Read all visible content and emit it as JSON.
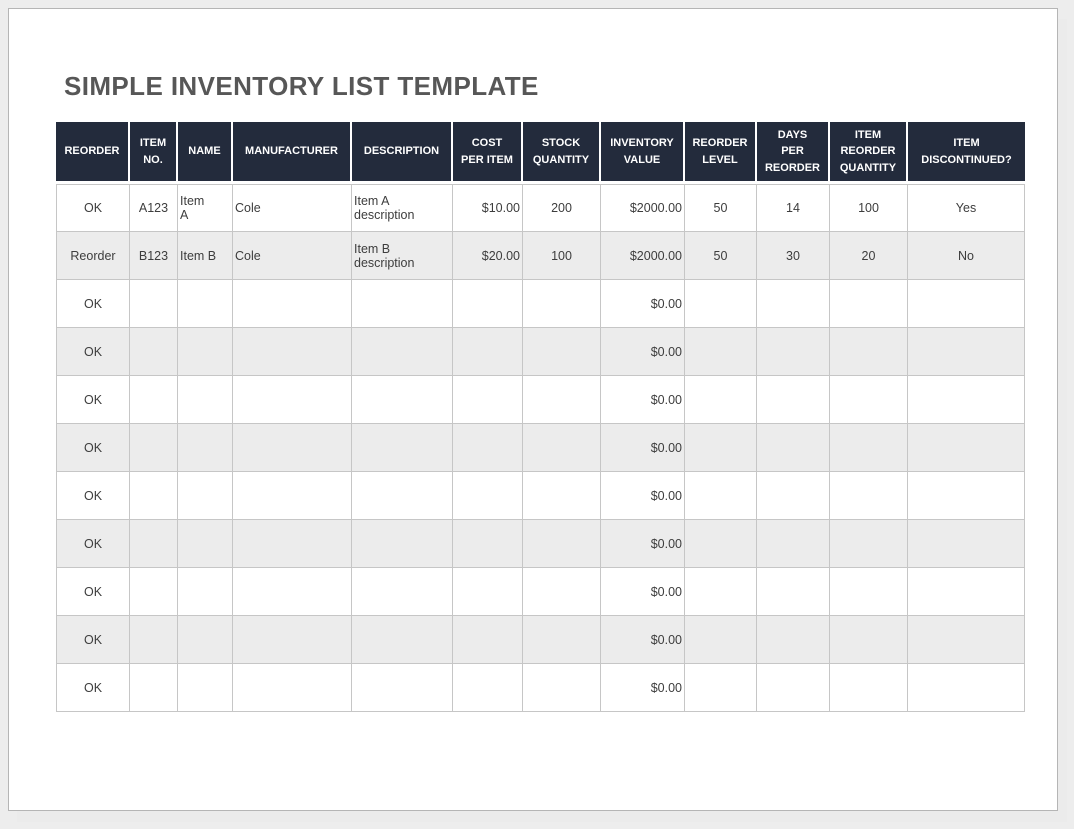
{
  "title": "SIMPLE INVENTORY LIST TEMPLATE",
  "colors": {
    "header_bg": "#232B3C",
    "header_text": "#FFFFFF",
    "alt_row_bg": "#ECECEC",
    "border": "#C6C6C6",
    "title_text": "#575757",
    "body_text": "#3D3D3D"
  },
  "table": {
    "columns": [
      {
        "key": "reorder",
        "label": "REORDER",
        "align": "center"
      },
      {
        "key": "item_no",
        "label": "ITEM\nNO.",
        "align": "center"
      },
      {
        "key": "name",
        "label": "NAME",
        "align": "left"
      },
      {
        "key": "manufacturer",
        "label": "MANUFACTURER",
        "align": "left"
      },
      {
        "key": "description",
        "label": "DESCRIPTION",
        "align": "left"
      },
      {
        "key": "cost_per_item",
        "label": "COST\nPER ITEM",
        "align": "right"
      },
      {
        "key": "stock_quantity",
        "label": "STOCK\nQUANTITY",
        "align": "center"
      },
      {
        "key": "inventory_value",
        "label": "INVENTORY\nVALUE",
        "align": "right"
      },
      {
        "key": "reorder_level",
        "label": "REORDER\nLEVEL",
        "align": "center"
      },
      {
        "key": "days_per_reorder",
        "label": "DAYS\nPER\nREORDER",
        "align": "center"
      },
      {
        "key": "item_reorder_quantity",
        "label": "ITEM\nREORDER\nQUANTITY",
        "align": "center"
      },
      {
        "key": "item_discontinued",
        "label": "ITEM\nDISCONTINUED?",
        "align": "center"
      }
    ],
    "rows": [
      {
        "reorder": "OK",
        "item_no": "A123",
        "name": "Item\nA",
        "manufacturer": "Cole",
        "description": "Item A\ndescription",
        "cost_per_item": "$10.00",
        "stock_quantity": "200",
        "inventory_value": "$2000.00",
        "reorder_level": "50",
        "days_per_reorder": "14",
        "item_reorder_quantity": "100",
        "item_discontinued": "Yes"
      },
      {
        "reorder": "Reorder",
        "item_no": "B123",
        "name": "Item B",
        "manufacturer": "Cole",
        "description": "Item B\ndescription",
        "cost_per_item": "$20.00",
        "stock_quantity": "100",
        "inventory_value": "$2000.00",
        "reorder_level": "50",
        "days_per_reorder": "30",
        "item_reorder_quantity": "20",
        "item_discontinued": "No"
      },
      {
        "reorder": "OK",
        "item_no": "",
        "name": "",
        "manufacturer": "",
        "description": "",
        "cost_per_item": "",
        "stock_quantity": "",
        "inventory_value": "$0.00",
        "reorder_level": "",
        "days_per_reorder": "",
        "item_reorder_quantity": "",
        "item_discontinued": ""
      },
      {
        "reorder": "OK",
        "item_no": "",
        "name": "",
        "manufacturer": "",
        "description": "",
        "cost_per_item": "",
        "stock_quantity": "",
        "inventory_value": "$0.00",
        "reorder_level": "",
        "days_per_reorder": "",
        "item_reorder_quantity": "",
        "item_discontinued": ""
      },
      {
        "reorder": "OK",
        "item_no": "",
        "name": "",
        "manufacturer": "",
        "description": "",
        "cost_per_item": "",
        "stock_quantity": "",
        "inventory_value": "$0.00",
        "reorder_level": "",
        "days_per_reorder": "",
        "item_reorder_quantity": "",
        "item_discontinued": ""
      },
      {
        "reorder": "OK",
        "item_no": "",
        "name": "",
        "manufacturer": "",
        "description": "",
        "cost_per_item": "",
        "stock_quantity": "",
        "inventory_value": "$0.00",
        "reorder_level": "",
        "days_per_reorder": "",
        "item_reorder_quantity": "",
        "item_discontinued": ""
      },
      {
        "reorder": "OK",
        "item_no": "",
        "name": "",
        "manufacturer": "",
        "description": "",
        "cost_per_item": "",
        "stock_quantity": "",
        "inventory_value": "$0.00",
        "reorder_level": "",
        "days_per_reorder": "",
        "item_reorder_quantity": "",
        "item_discontinued": ""
      },
      {
        "reorder": "OK",
        "item_no": "",
        "name": "",
        "manufacturer": "",
        "description": "",
        "cost_per_item": "",
        "stock_quantity": "",
        "inventory_value": "$0.00",
        "reorder_level": "",
        "days_per_reorder": "",
        "item_reorder_quantity": "",
        "item_discontinued": ""
      },
      {
        "reorder": "OK",
        "item_no": "",
        "name": "",
        "manufacturer": "",
        "description": "",
        "cost_per_item": "",
        "stock_quantity": "",
        "inventory_value": "$0.00",
        "reorder_level": "",
        "days_per_reorder": "",
        "item_reorder_quantity": "",
        "item_discontinued": ""
      },
      {
        "reorder": "OK",
        "item_no": "",
        "name": "",
        "manufacturer": "",
        "description": "",
        "cost_per_item": "",
        "stock_quantity": "",
        "inventory_value": "$0.00",
        "reorder_level": "",
        "days_per_reorder": "",
        "item_reorder_quantity": "",
        "item_discontinued": ""
      },
      {
        "reorder": "OK",
        "item_no": "",
        "name": "",
        "manufacturer": "",
        "description": "",
        "cost_per_item": "",
        "stock_quantity": "",
        "inventory_value": "$0.00",
        "reorder_level": "",
        "days_per_reorder": "",
        "item_reorder_quantity": "",
        "item_discontinued": ""
      }
    ]
  }
}
